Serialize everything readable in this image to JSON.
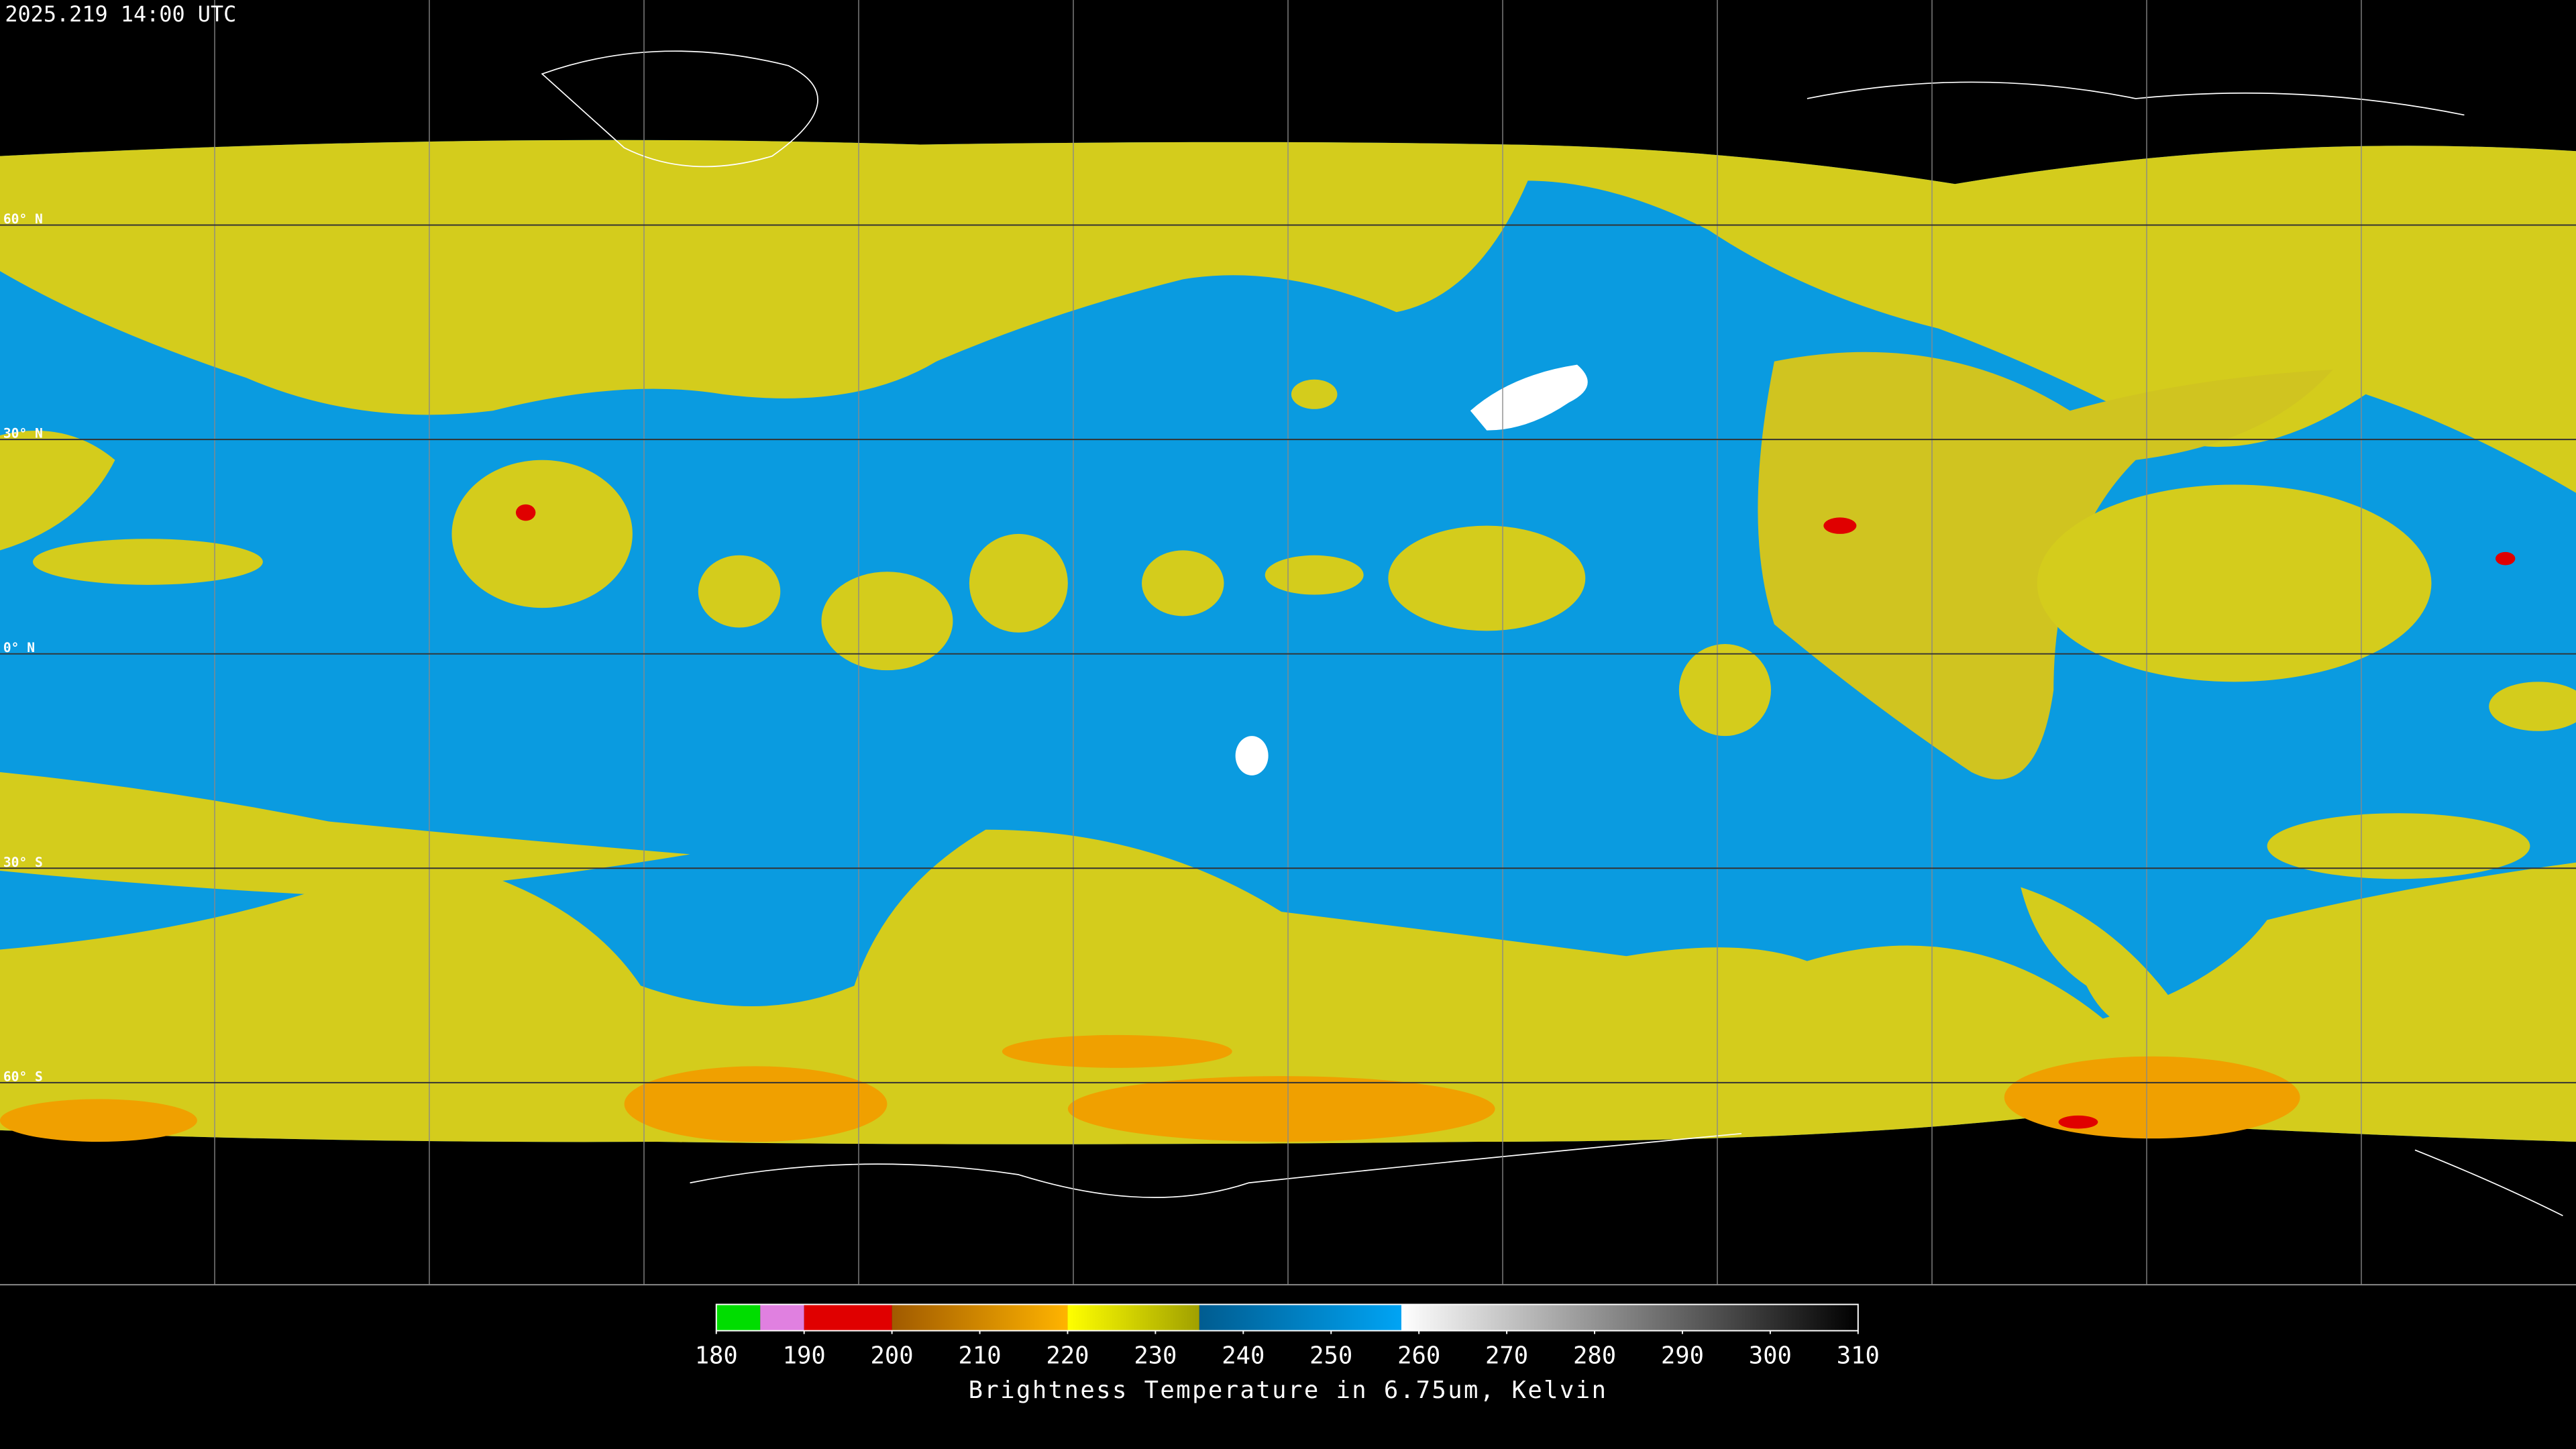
{
  "timestamp": "2025.219 14:00 UTC",
  "lat_ticks": [
    {
      "value": 60,
      "label": "60° N"
    },
    {
      "value": 30,
      "label": "30° N"
    },
    {
      "value": 0,
      "label": "0° N"
    },
    {
      "value": -30,
      "label": "30° S"
    },
    {
      "value": -60,
      "label": "60° S"
    }
  ],
  "colorbar": {
    "title": "Brightness Temperature in 6.75um, Kelvin",
    "lim": [
      180,
      310
    ],
    "ticks": [
      180,
      190,
      200,
      210,
      220,
      230,
      240,
      250,
      260,
      270,
      280,
      290,
      300,
      310
    ],
    "segments": [
      {
        "from": 180,
        "to": 185,
        "colors": [
          "#00dd00",
          "#00dd00"
        ]
      },
      {
        "from": 185,
        "to": 190,
        "colors": [
          "#e080e0",
          "#e080e0"
        ]
      },
      {
        "from": 190,
        "to": 200,
        "colors": [
          "#e00000",
          "#e00000"
        ]
      },
      {
        "from": 200,
        "to": 220,
        "colors": [
          "#a05a00",
          "#ffb400"
        ]
      },
      {
        "from": 220,
        "to": 235,
        "colors": [
          "#ffff00",
          "#a0a000"
        ]
      },
      {
        "from": 235,
        "to": 258,
        "colors": [
          "#005c90",
          "#00a4f4"
        ]
      },
      {
        "from": 258,
        "to": 310,
        "colors": [
          "#ffffff",
          "#000000"
        ]
      }
    ]
  }
}
